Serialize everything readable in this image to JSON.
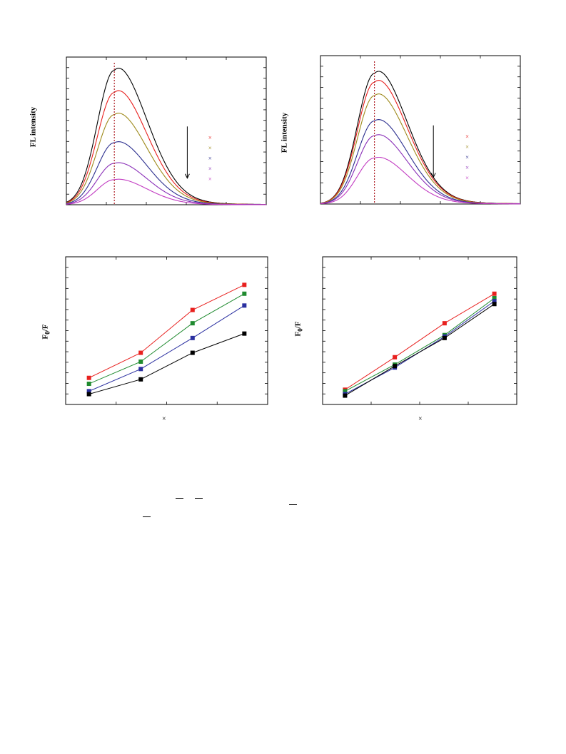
{
  "colors": {
    "black": "#000000",
    "red": "#e8201e",
    "olive": "#9e8a1c",
    "navy": "#2b2e8e",
    "purple": "#8a2fb8",
    "magenta": "#c23cc2",
    "green": "#1f8a2f",
    "blue": "#2a2fa0",
    "dashed": "#b0232a"
  },
  "chart_data": [
    {
      "id": "a",
      "type": "line",
      "title": "",
      "xlabel": "",
      "ylabel": "FL intensity",
      "grid": false,
      "x_range": [
        0,
        1
      ],
      "y_range": [
        0,
        1
      ],
      "peak_x": 0.24,
      "marker_line_x": 0.24,
      "quench_arrow": true,
      "series": [
        {
          "values": {
            "peak": 0.91
          },
          "color": "black"
        },
        {
          "values": {
            "peak": 0.76
          },
          "color": "red"
        },
        {
          "values": {
            "peak": 0.61
          },
          "color": "olive"
        },
        {
          "values": {
            "peak": 0.42
          },
          "color": "navy"
        },
        {
          "values": {
            "peak": 0.28
          },
          "color": "purple"
        },
        {
          "values": {
            "peak": 0.17
          },
          "color": "magenta"
        }
      ],
      "legend_marker": "×",
      "legend_colors": [
        "red",
        "olive",
        "navy",
        "purple",
        "magenta"
      ]
    },
    {
      "id": "b",
      "type": "line",
      "title": "",
      "xlabel": "",
      "ylabel": "FL intensity",
      "grid": false,
      "x_range": [
        0,
        1
      ],
      "y_range": [
        0,
        1
      ],
      "peak_x": 0.27,
      "marker_line_x": 0.27,
      "quench_arrow": true,
      "series": [
        {
          "values": {
            "peak": 0.88
          },
          "color": "black"
        },
        {
          "values": {
            "peak": 0.82
          },
          "color": "red"
        },
        {
          "values": {
            "peak": 0.73
          },
          "color": "olive"
        },
        {
          "values": {
            "peak": 0.56
          },
          "color": "navy"
        },
        {
          "values": {
            "peak": 0.46
          },
          "color": "purple"
        },
        {
          "values": {
            "peak": 0.31
          },
          "color": "magenta"
        }
      ],
      "legend_marker": "×",
      "legend_colors": [
        "red",
        "olive",
        "navy",
        "purple",
        "magenta"
      ]
    },
    {
      "id": "c",
      "type": "line",
      "title": "",
      "xlabel": "×",
      "ylabel_main": "F",
      "ylabel_sub": "0",
      "ylabel_tail": "/F",
      "grid": false,
      "x": [
        1,
        2,
        3,
        4
      ],
      "x_range": [
        0.55,
        4.45
      ],
      "y_range": [
        0,
        1
      ],
      "series": [
        {
          "values": [
            0.18,
            0.35,
            0.64,
            0.81
          ],
          "color": "red"
        },
        {
          "values": [
            0.14,
            0.29,
            0.55,
            0.75
          ],
          "color": "green"
        },
        {
          "values": [
            0.09,
            0.24,
            0.45,
            0.67
          ],
          "color": "blue"
        },
        {
          "values": [
            0.07,
            0.17,
            0.35,
            0.48
          ],
          "color": "black"
        }
      ]
    },
    {
      "id": "d",
      "type": "line",
      "title": "",
      "xlabel": "×",
      "ylabel_main": "F",
      "ylabel_sub": "0",
      "ylabel_tail": "/F",
      "grid": false,
      "x": [
        1,
        2,
        3,
        4
      ],
      "x_range": [
        0.55,
        4.45
      ],
      "y_range": [
        0,
        1
      ],
      "series": [
        {
          "values": [
            0.1,
            0.32,
            0.55,
            0.75
          ],
          "color": "red"
        },
        {
          "values": [
            0.09,
            0.27,
            0.47,
            0.72
          ],
          "color": "green"
        },
        {
          "values": [
            0.07,
            0.25,
            0.46,
            0.7
          ],
          "color": "blue"
        },
        {
          "values": [
            0.06,
            0.26,
            0.45,
            0.68
          ],
          "color": "black"
        }
      ]
    }
  ]
}
